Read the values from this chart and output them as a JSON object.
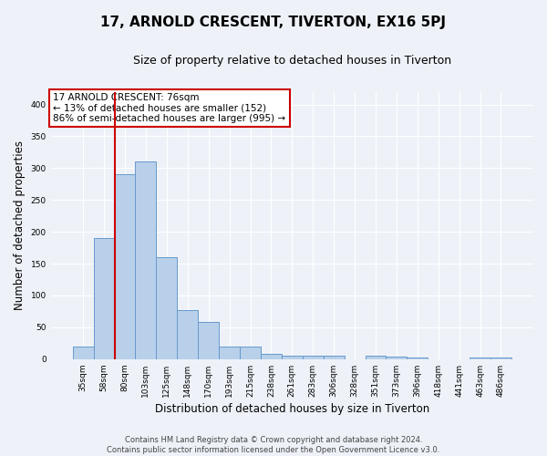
{
  "title": "17, ARNOLD CRESCENT, TIVERTON, EX16 5PJ",
  "subtitle": "Size of property relative to detached houses in Tiverton",
  "xlabel": "Distribution of detached houses by size in Tiverton",
  "ylabel": "Number of detached properties",
  "categories": [
    "35sqm",
    "58sqm",
    "80sqm",
    "103sqm",
    "125sqm",
    "148sqm",
    "170sqm",
    "193sqm",
    "215sqm",
    "238sqm",
    "261sqm",
    "283sqm",
    "306sqm",
    "328sqm",
    "351sqm",
    "373sqm",
    "396sqm",
    "418sqm",
    "441sqm",
    "463sqm",
    "486sqm"
  ],
  "values": [
    20,
    190,
    290,
    310,
    160,
    77,
    58,
    20,
    20,
    8,
    5,
    5,
    5,
    0,
    5,
    4,
    3,
    0,
    0,
    3,
    3
  ],
  "bar_color": "#b8d0ea",
  "bar_edge_color": "#6699cc",
  "vline_x": 1.5,
  "vline_color": "#cc0000",
  "annotation_text": "17 ARNOLD CRESCENT: 76sqm\n← 13% of detached houses are smaller (152)\n86% of semi-detached houses are larger (995) →",
  "annotation_box_color": "#ffffff",
  "annotation_box_edge": "#cc0000",
  "ylim": [
    0,
    420
  ],
  "yticks": [
    0,
    50,
    100,
    150,
    200,
    250,
    300,
    350,
    400
  ],
  "footer": "Contains HM Land Registry data © Crown copyright and database right 2024.\nContains public sector information licensed under the Open Government Licence v3.0.",
  "bg_color": "#eef2f8",
  "plot_bg_color": "#eef2f8"
}
